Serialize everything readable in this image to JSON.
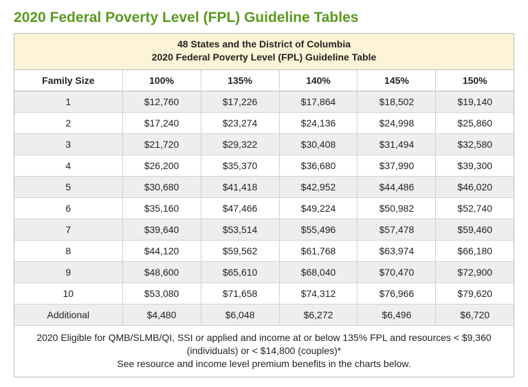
{
  "page_title": "2020 Federal Poverty Level (FPL) Guideline Tables",
  "table": {
    "type": "table",
    "caption_line1": "48 States and the District of Columbia",
    "caption_line2": "2020 Federal Poverty Level (FPL) Guideline Table",
    "columns": [
      "Family Size",
      "100%",
      "135%",
      "140%",
      "145%",
      "150%"
    ],
    "rows": [
      [
        "1",
        "$12,760",
        "$17,226",
        "$17,864",
        "$18,502",
        "$19,140"
      ],
      [
        "2",
        "$17,240",
        "$23,274",
        "$24,136",
        "$24,998",
        "$25,860"
      ],
      [
        "3",
        "$21,720",
        "$29,322",
        "$30,408",
        "$31,494",
        "$32,580"
      ],
      [
        "4",
        "$26,200",
        "$35,370",
        "$36,680",
        "$37,990",
        "$39,300"
      ],
      [
        "5",
        "$30,680",
        "$41,418",
        "$42,952",
        "$44,486",
        "$46,020"
      ],
      [
        "6",
        "$35,160",
        "$47,466",
        "$49,224",
        "$50,982",
        "$52,740"
      ],
      [
        "7",
        "$39,640",
        "$53,514",
        "$55,496",
        "$57,478",
        "$59,460"
      ],
      [
        "8",
        "$44,120",
        "$59,562",
        "$61,768",
        "$63,974",
        "$66,180"
      ],
      [
        "9",
        "$48,600",
        "$65,610",
        "$68,040",
        "$70,470",
        "$72,900"
      ],
      [
        "10",
        "$53,080",
        "$71,658",
        "$74,312",
        "$76,966",
        "$79,620"
      ],
      [
        "Additional",
        "$4,480",
        "$6,048",
        "$6,272",
        "$6,496",
        "$6,720"
      ]
    ],
    "footnote_line1": "2020 Eligible for QMB/SLMB/QI, SSI or applied and income at or below 135% FPL and resources < $9,360 (individuals) or < $14,800 (couples)*",
    "footnote_line2": "See resource and income level premium benefits in the charts below.",
    "colors": {
      "title_color": "#5a9a1f",
      "caption_bg": "#fdf3d6",
      "row_alt_bg": "#eeeeee",
      "border_color": "#b9b9b9",
      "cell_border_color": "#d0d0d0",
      "text_color": "#222222",
      "background": "#ffffff"
    },
    "font_sizes": {
      "title": 21,
      "body": 14
    }
  }
}
